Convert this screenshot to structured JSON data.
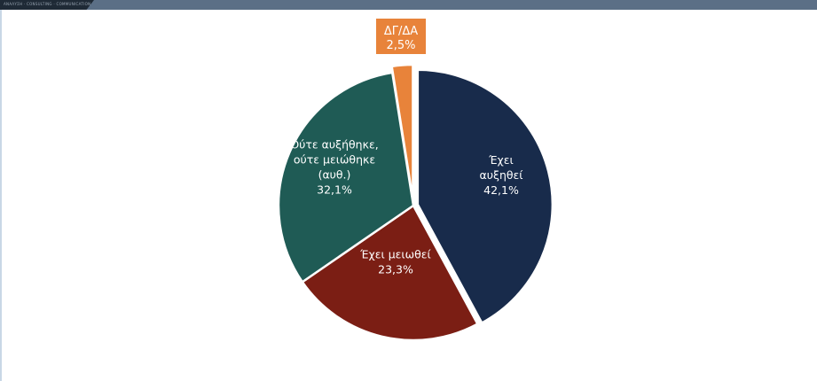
{
  "header": {
    "brand_text": "ΑΝΑΛΥΣΗ · CONSULTING · COMMUNICATION"
  },
  "colors": {
    "header_bar": "#5b6f86",
    "header_dark": "#1f2a36"
  },
  "chart_data": {
    "type": "pie",
    "title": "",
    "start_angle_deg": 0,
    "direction": "clockwise",
    "slices": [
      {
        "label_lines": [
          "Έχει",
          "αυξηθεί"
        ],
        "value": 42.1,
        "value_text": "42,1%",
        "color": "#182b4b"
      },
      {
        "label_lines": [
          "Έχει μειωθεί"
        ],
        "value": 23.3,
        "value_text": "23,3%",
        "color": "#7b1e14"
      },
      {
        "label_lines": [
          "Ούτε αυξήθηκε,",
          "ούτε μειώθηκε",
          "(αυθ.)"
        ],
        "value": 32.1,
        "value_text": "32,1%",
        "color": "#1f5b55"
      },
      {
        "label_lines": [
          "ΔΓ/ΔΑ"
        ],
        "value": 2.5,
        "value_text": "2,5%",
        "color": "#e8833a"
      }
    ]
  }
}
